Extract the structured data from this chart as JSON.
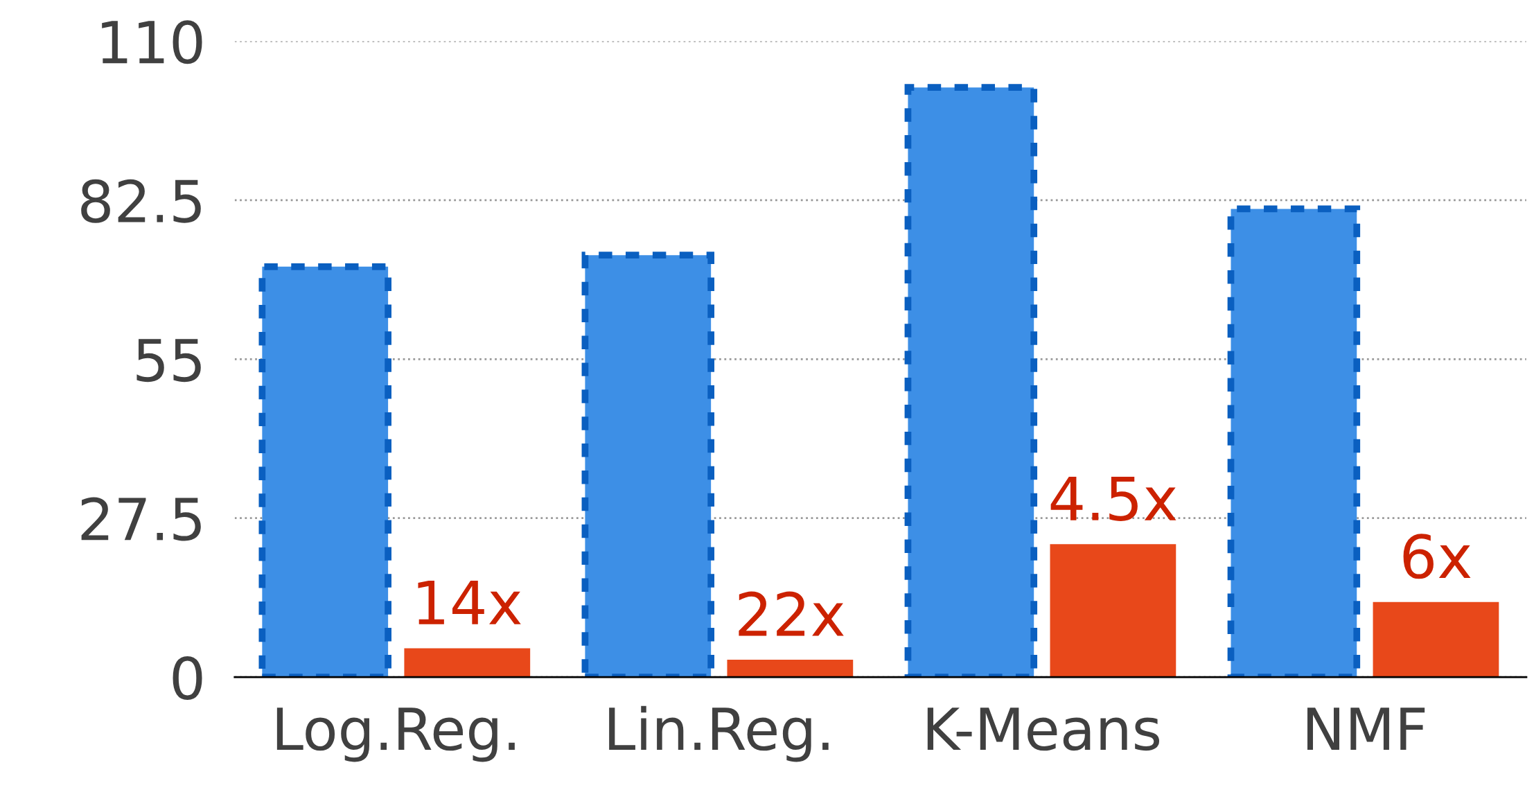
{
  "chart_data": {
    "type": "bar",
    "categories": [
      "Log.Reg.",
      "Lin.Reg.",
      "K-Means",
      "NMF"
    ],
    "series": [
      {
        "color": "#3d8fe6",
        "line_style": "dashed",
        "values": [
          71,
          73,
          102,
          81
        ]
      },
      {
        "color": "#e8481a",
        "values": [
          5,
          3,
          23,
          13
        ]
      }
    ],
    "annotations": [
      "14x",
      "22x",
      "4.5x",
      "6x"
    ],
    "ylim": [
      0,
      110
    ],
    "yticks": [
      0,
      27.5,
      55,
      82.5,
      110
    ],
    "grid": "y"
  }
}
